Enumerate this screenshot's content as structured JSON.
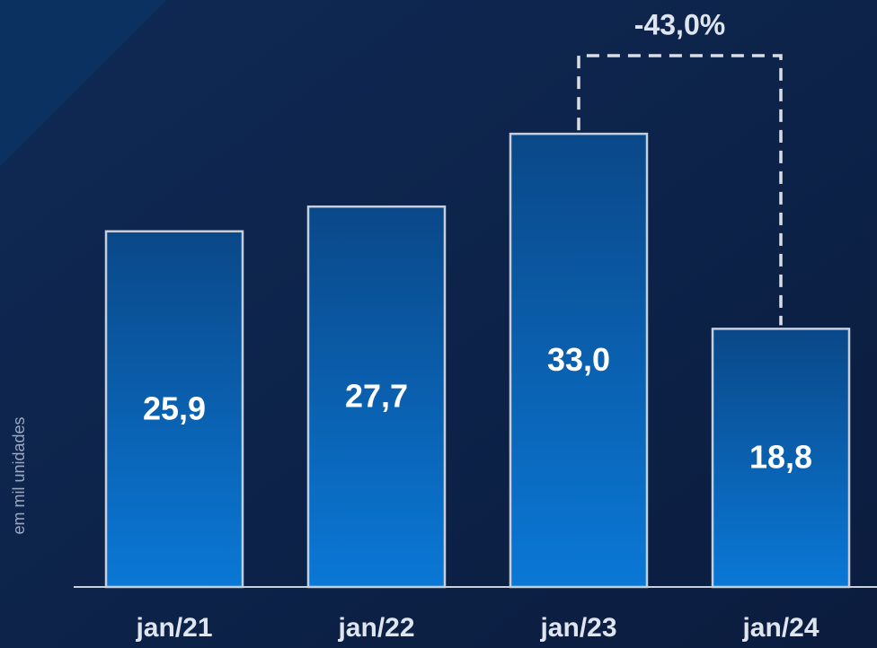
{
  "chart_data": {
    "type": "bar",
    "categories": [
      "jan/21",
      "jan/22",
      "jan/23",
      "jan/24"
    ],
    "values": [
      25.9,
      27.7,
      33.0,
      18.8
    ],
    "value_labels": [
      "25,9",
      "27,7",
      "33,0",
      "18,8"
    ],
    "ylim": [
      0,
      40
    ],
    "ylabel": "em mil unidades",
    "annotation": "-43,0%",
    "color": "#0a5fb0"
  }
}
